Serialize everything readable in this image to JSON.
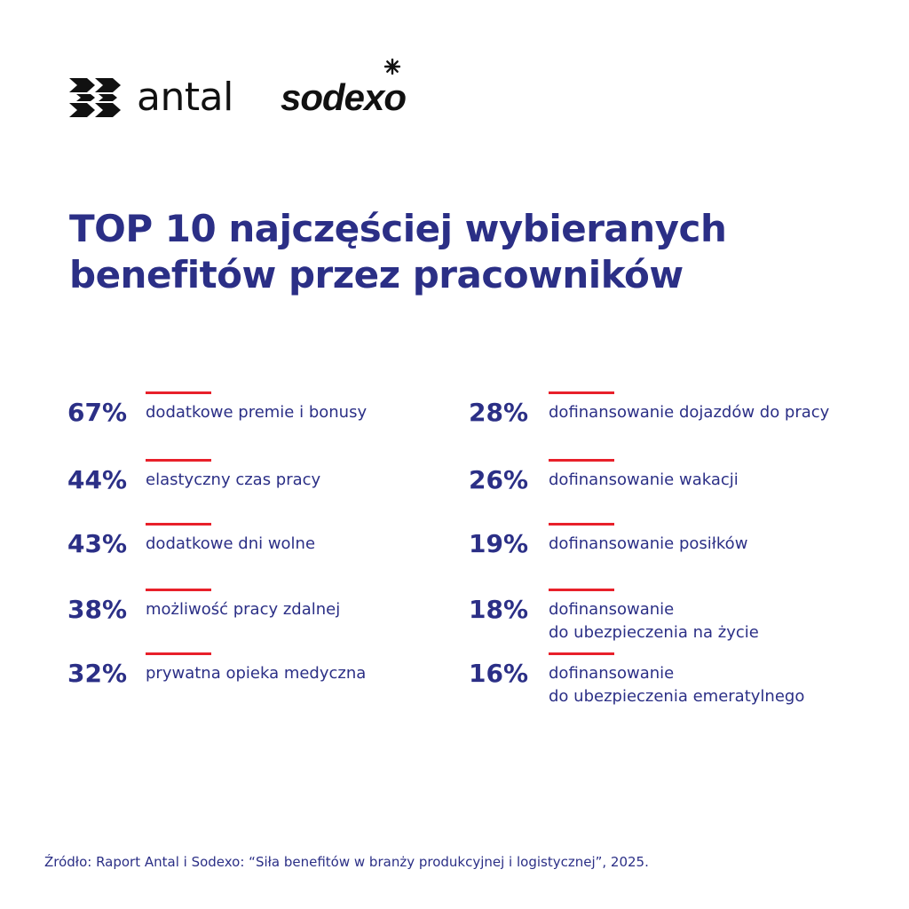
{
  "logos": {
    "antal_text": "antal",
    "sodexo_text": "sodexo"
  },
  "colors": {
    "title": "#2b2f86",
    "accent_line": "#e8202a",
    "logo": "#111111"
  },
  "chart_data": {
    "type": "table",
    "title_lines": [
      "TOP 10 najczęściej wybieranych",
      "benefitów przez pracowników"
    ],
    "unit": "%",
    "columns": [
      [
        {
          "value": 67,
          "percent_label": "67%",
          "label_lines": [
            "dodatkowe premie i bonusy"
          ]
        },
        {
          "value": 44,
          "percent_label": "44%",
          "label_lines": [
            "elastyczny czas pracy"
          ]
        },
        {
          "value": 43,
          "percent_label": "43%",
          "label_lines": [
            "dodatkowe dni wolne"
          ]
        },
        {
          "value": 38,
          "percent_label": "38%",
          "label_lines": [
            "możliwość pracy zdalnej"
          ]
        },
        {
          "value": 32,
          "percent_label": "32%",
          "label_lines": [
            "prywatna opieka medyczna"
          ]
        }
      ],
      [
        {
          "value": 28,
          "percent_label": "28%",
          "label_lines": [
            "dofinansowanie dojazdów do pracy"
          ]
        },
        {
          "value": 26,
          "percent_label": "26%",
          "label_lines": [
            "dofinansowanie wakacji"
          ]
        },
        {
          "value": 19,
          "percent_label": "19%",
          "label_lines": [
            "dofinansowanie posiłków"
          ]
        },
        {
          "value": 18,
          "percent_label": "18%",
          "label_lines": [
            "dofinansowanie",
            "do ubezpieczenia na życie"
          ]
        },
        {
          "value": 16,
          "percent_label": "16%",
          "label_lines": [
            "dofinansowanie",
            "do ubezpieczenia emeratylnego"
          ]
        }
      ]
    ],
    "source": "Źródło: Raport Antal i Sodexo: “Siła benefitów w branży produkcyjnej i logistycznej”, 2025."
  }
}
